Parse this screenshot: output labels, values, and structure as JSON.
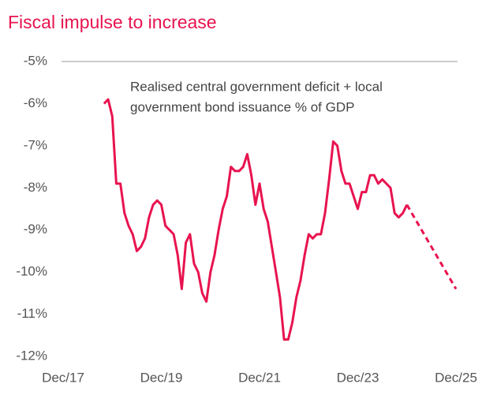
{
  "chart_data": {
    "type": "line",
    "title": "Fiscal impulse to increase",
    "annotation": [
      "Realised central government deficit + local",
      "government bond issuance % of GDP"
    ],
    "series": [
      {
        "color": "#e8134f",
        "style": "solid",
        "x": [
          "2018-10",
          "2018-11",
          "2018-12",
          "2019-01",
          "2019-02",
          "2019-03",
          "2019-04",
          "2019-05",
          "2019-06",
          "2019-07",
          "2019-08",
          "2019-09",
          "2019-10",
          "2019-11",
          "2019-12",
          "2020-01",
          "2020-02",
          "2020-03",
          "2020-04",
          "2020-05",
          "2020-06",
          "2020-07",
          "2020-08",
          "2020-09",
          "2020-10",
          "2020-11",
          "2020-12",
          "2021-01",
          "2021-02",
          "2021-03",
          "2021-04",
          "2021-05",
          "2021-06",
          "2021-07",
          "2021-08",
          "2021-09",
          "2021-10",
          "2021-11",
          "2021-12",
          "2022-01",
          "2022-02",
          "2022-03",
          "2022-04",
          "2022-05",
          "2022-06",
          "2022-07",
          "2022-08",
          "2022-09",
          "2022-10",
          "2022-11",
          "2022-12",
          "2023-01",
          "2023-02",
          "2023-03",
          "2023-04",
          "2023-05",
          "2023-06",
          "2023-07",
          "2023-08",
          "2023-09",
          "2023-10",
          "2023-11",
          "2023-12",
          "2024-01",
          "2024-02",
          "2024-03",
          "2024-04",
          "2024-05",
          "2024-06",
          "2024-07",
          "2024-08",
          "2024-09",
          "2024-10",
          "2024-11",
          "2024-12"
        ],
        "values": [
          -6.0,
          -5.9,
          -6.3,
          -7.9,
          -7.9,
          -8.6,
          -8.9,
          -9.1,
          -9.5,
          -9.4,
          -9.2,
          -8.7,
          -8.4,
          -8.3,
          -8.4,
          -8.9,
          -9.0,
          -9.1,
          -9.6,
          -10.4,
          -9.3,
          -9.1,
          -9.8,
          -10.0,
          -10.5,
          -10.7,
          -10.0,
          -9.6,
          -9.0,
          -8.5,
          -8.2,
          -7.5,
          -7.6,
          -7.6,
          -7.5,
          -7.2,
          -7.7,
          -8.4,
          -7.9,
          -8.5,
          -8.8,
          -9.4,
          -10.0,
          -10.6,
          -11.6,
          -11.6,
          -11.2,
          -10.6,
          -10.2,
          -9.6,
          -9.1,
          -9.2,
          -9.1,
          -9.1,
          -8.6,
          -7.8,
          -6.9,
          -7.0,
          -7.6,
          -7.9,
          -7.9,
          -8.2,
          -8.5,
          -8.1,
          -8.1,
          -7.7,
          -7.7,
          -7.9,
          -7.8,
          -7.9,
          -8.0,
          -8.6,
          -8.7,
          -8.6,
          -8.4
        ]
      },
      {
        "color": "#e8134f",
        "style": "dashed",
        "x": [
          "2024-12",
          "2025-12"
        ],
        "values": [
          -8.4,
          -10.4
        ]
      }
    ],
    "xlim": [
      "2017-12",
      "2025-12"
    ],
    "xticks": [
      {
        "value": "2017-12",
        "label": "Dec/17"
      },
      {
        "value": "2019-12",
        "label": "Dec/19"
      },
      {
        "value": "2021-12",
        "label": "Dec/21"
      },
      {
        "value": "2023-12",
        "label": "Dec/23"
      },
      {
        "value": "2025-12",
        "label": "Dec/25"
      }
    ],
    "ylim": [
      -12,
      -5
    ],
    "yticks": [
      {
        "value": -5,
        "label": "-5%"
      },
      {
        "value": -6,
        "label": "-6%"
      },
      {
        "value": -7,
        "label": "-7%"
      },
      {
        "value": -8,
        "label": "-8%"
      },
      {
        "value": -9,
        "label": "-9%"
      },
      {
        "value": -10,
        "label": "-10%"
      },
      {
        "value": -11,
        "label": "-11%"
      },
      {
        "value": -12,
        "label": "-12%"
      }
    ]
  }
}
